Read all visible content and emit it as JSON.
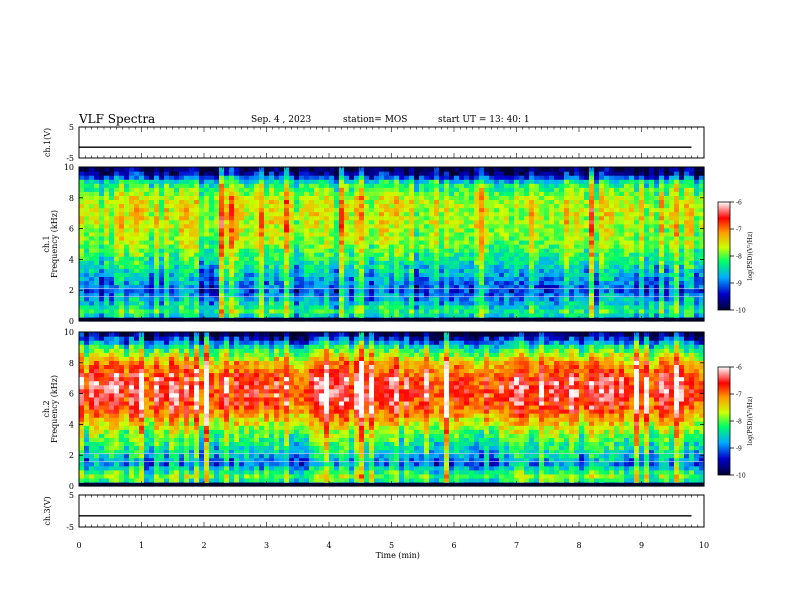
{
  "header": {
    "title": "VLF Spectra",
    "date": "Sep. 4 , 2023",
    "station": "station= MOS",
    "start": "start UT = 13: 40: 1"
  },
  "chart_data": [
    {
      "type": "line",
      "panel": "ch1-waveform",
      "ylabel": "ch.1(V)",
      "ylim": [
        -5,
        5
      ],
      "yticks": [
        "5",
        "-5"
      ],
      "series": [
        {
          "x": [
            0,
            9.8
          ],
          "values": [
            -1.5,
            -1.5
          ]
        }
      ]
    },
    {
      "type": "heatmap",
      "panel": "ch1-spectrogram",
      "ylabel": "ch.1",
      "ylabel2": "Frequency (kHz)",
      "xlim": [
        0,
        10
      ],
      "ylim": [
        0,
        10
      ],
      "yticks": [
        "0",
        "2",
        "4",
        "6",
        "8",
        "10"
      ],
      "colorbar": {
        "label": "log(PSD)(V²/Hz)",
        "range": [
          -10,
          -6
        ],
        "ticks": [
          "-6",
          "-7",
          "-8",
          "-9",
          "-10"
        ]
      },
      "profile": {
        "freq_khz": [
          0,
          0.5,
          1,
          2,
          3,
          4,
          5,
          6,
          7,
          8,
          9,
          9.5,
          10
        ],
        "level": [
          -10,
          -8.2,
          -8.6,
          -9.2,
          -8.8,
          -8.4,
          -8.0,
          -7.8,
          -7.7,
          -7.8,
          -8.4,
          -9.6,
          -10
        ]
      },
      "lines_khz": [
        1.6,
        2.1
      ]
    },
    {
      "type": "heatmap",
      "panel": "ch2-spectrogram",
      "ylabel": "ch.2",
      "ylabel2": "Frequency (kHz)",
      "xlim": [
        0,
        10
      ],
      "ylim": [
        0,
        10
      ],
      "yticks": [
        "0",
        "2",
        "4",
        "6",
        "8",
        "10"
      ],
      "colorbar": {
        "label": "log(PSD)(V²/Hz)",
        "range": [
          -10,
          -6
        ],
        "ticks": [
          "-6",
          "-7",
          "-8",
          "-9",
          "-10"
        ]
      },
      "profile": {
        "freq_khz": [
          0,
          0.5,
          1,
          1.5,
          2,
          3,
          4,
          5,
          6,
          7,
          8,
          9,
          9.5,
          10
        ],
        "level": [
          -10,
          -7.8,
          -8.4,
          -9.0,
          -8.6,
          -8.2,
          -7.6,
          -6.8,
          -6.5,
          -6.6,
          -7.2,
          -8.3,
          -9.2,
          -10
        ]
      },
      "lines_khz": [
        1.6,
        2.1
      ]
    },
    {
      "type": "line",
      "panel": "ch3-waveform",
      "ylabel": "ch.3(V)",
      "ylim": [
        -5,
        5
      ],
      "yticks": [
        "5",
        "-5"
      ],
      "series": [
        {
          "x": [
            0,
            9.8
          ],
          "values": [
            -1.5,
            -1.5
          ]
        }
      ]
    }
  ],
  "x_axis": {
    "label": "Time (min)",
    "ticks": [
      "0",
      "1",
      "2",
      "3",
      "4",
      "5",
      "6",
      "7",
      "8",
      "9",
      "10"
    ]
  },
  "colors": {
    "scale": [
      "#000033",
      "#0000cc",
      "#00aaff",
      "#00ff66",
      "#ccff00",
      "#ff9900",
      "#ff0000",
      "#ffffff"
    ]
  }
}
